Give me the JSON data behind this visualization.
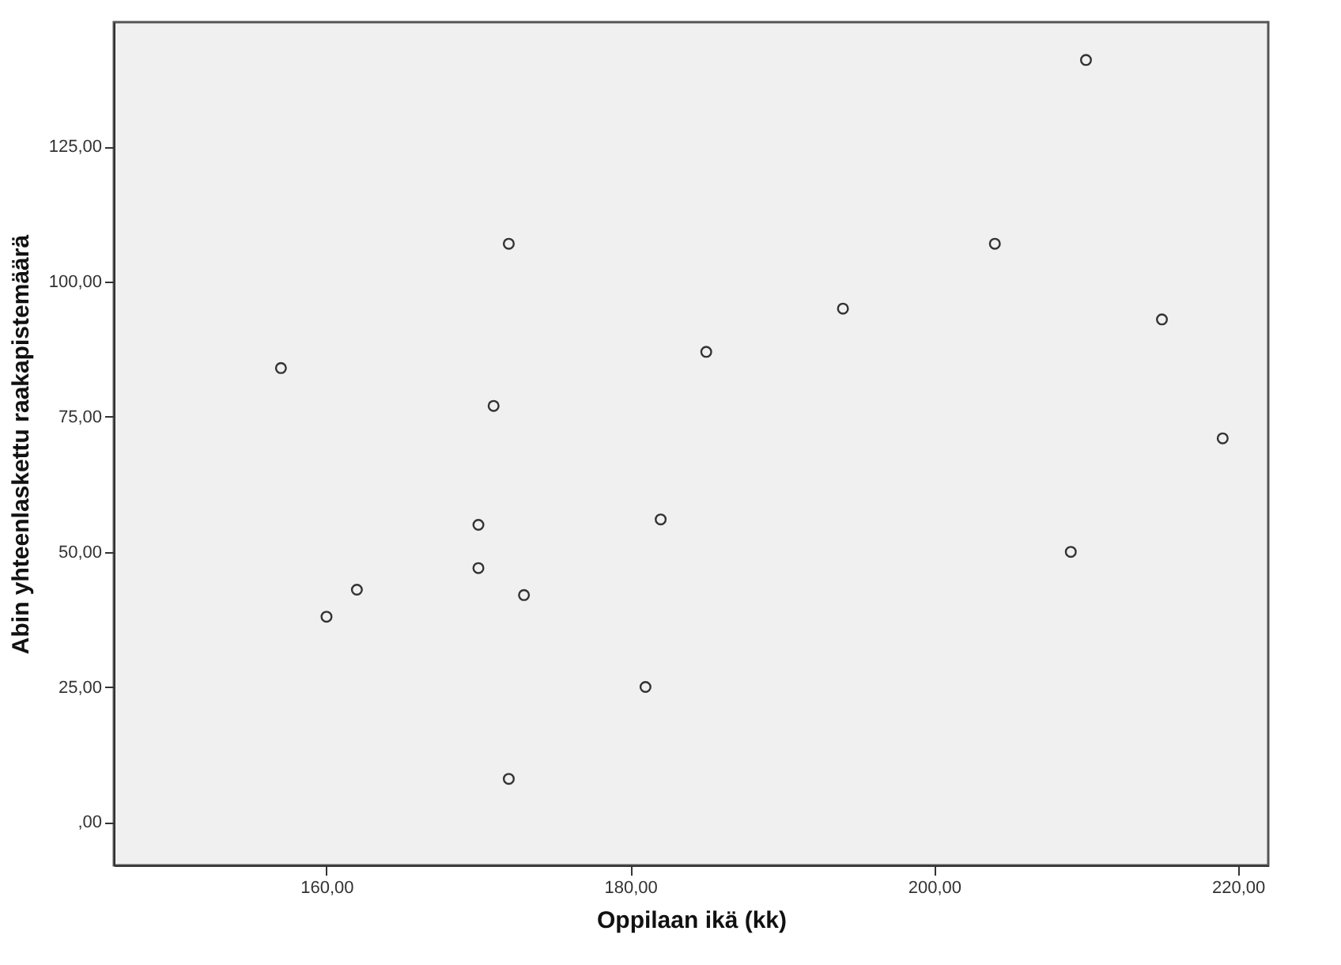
{
  "chart_data": {
    "type": "scatter",
    "xlabel": "Oppilaan ikä (kk)",
    "ylabel": "Abin yhteenlaskettu raakapistemäärä",
    "x": [
      157,
      172,
      171,
      185,
      160,
      162,
      170,
      170,
      173,
      182,
      181,
      172,
      210,
      204,
      194,
      215,
      219,
      209
    ],
    "series": [
      {
        "color": "#333333",
        "values": [
          84,
          107,
          77,
          87,
          38,
          43,
          55,
          47,
          42,
          56,
          25,
          8,
          141,
          107,
          95,
          93,
          71,
          50
        ]
      }
    ],
    "xlim": [
      146,
      222
    ],
    "ylim": [
      -8,
      148
    ],
    "xticks": [
      {
        "value": 160,
        "label": "160,00"
      },
      {
        "value": 180,
        "label": "180,00"
      },
      {
        "value": 200,
        "label": "200,00"
      },
      {
        "value": 220,
        "label": "220,00"
      }
    ],
    "yticks": [
      {
        "value": 0,
        "label": ",00"
      },
      {
        "value": 25,
        "label": "25,00"
      },
      {
        "value": 50,
        "label": "50,00"
      },
      {
        "value": 75,
        "label": "75,00"
      },
      {
        "value": 100,
        "label": "100,00"
      },
      {
        "value": 125,
        "label": "125,00"
      }
    ],
    "grid": false,
    "marker": "circle"
  }
}
